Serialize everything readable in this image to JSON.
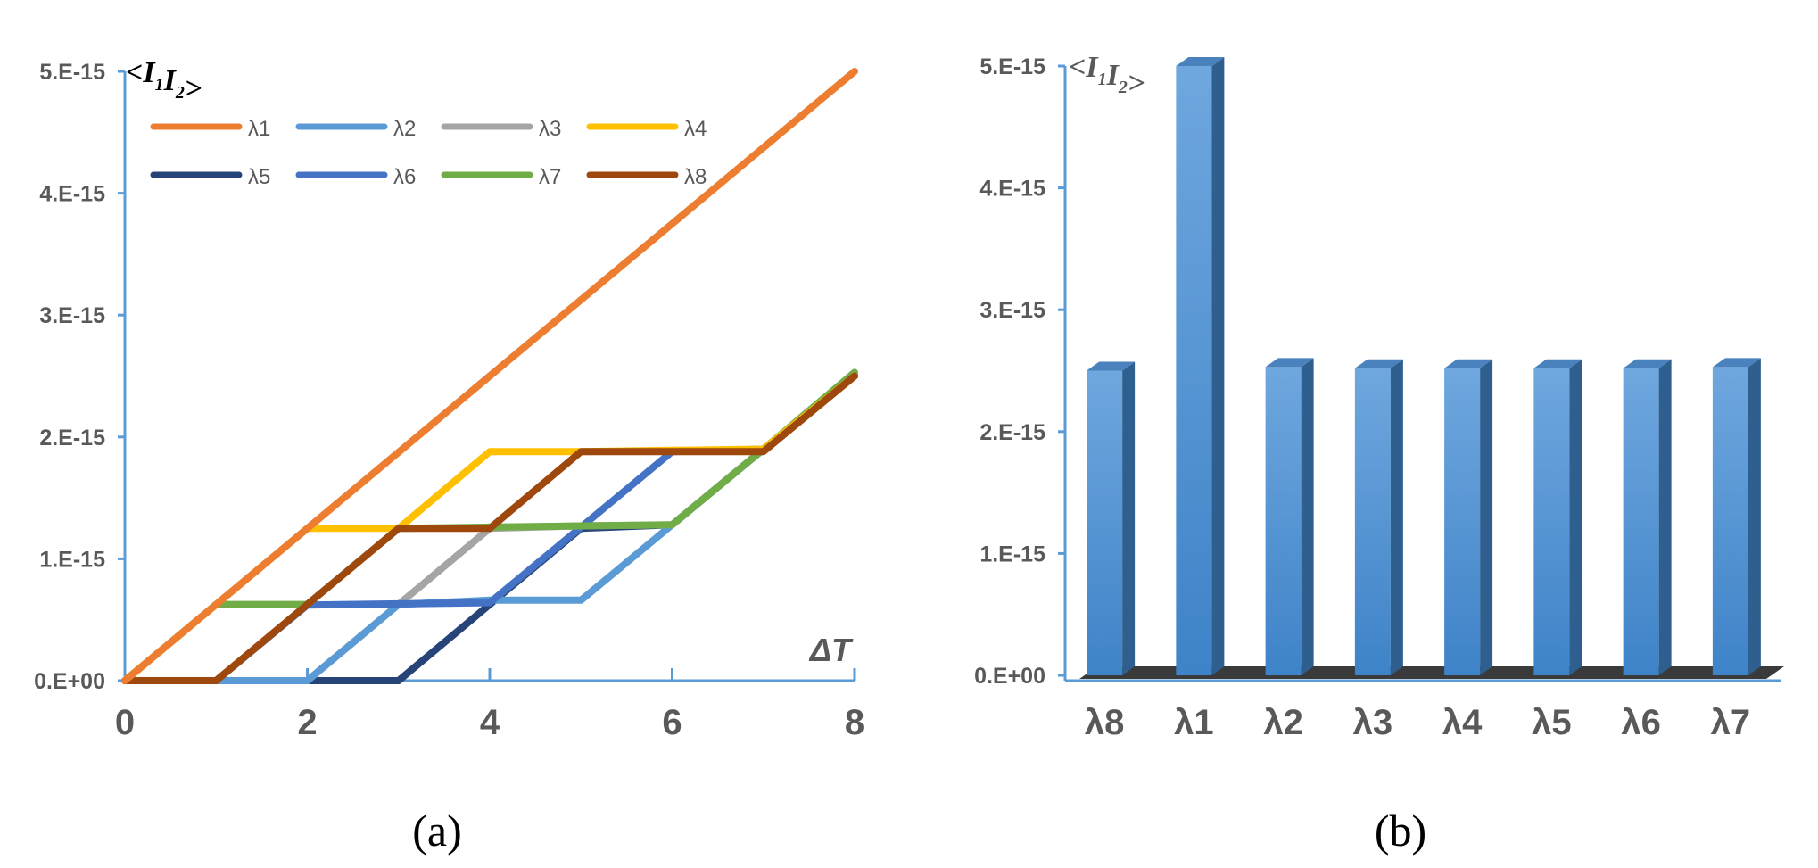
{
  "chart_data": [
    {
      "type": "line",
      "caption": "(a)",
      "ylabel": "<I1I2>",
      "xlabel": "ΔT",
      "xlim": [
        0,
        8
      ],
      "ylim": [
        0,
        5e-15
      ],
      "x_ticks": [
        "0",
        "2",
        "4",
        "6",
        "8"
      ],
      "y_ticks": [
        "0.E+00",
        "1.E-15",
        "2.E-15",
        "3.E-15",
        "4.E-15",
        "5.E-15"
      ],
      "legend_position": "top-left",
      "x": [
        0,
        1,
        2,
        3,
        4,
        5,
        6,
        7,
        8
      ],
      "series": [
        {
          "name": "λ1",
          "color": "#ED7D31",
          "values": [
            0,
            6.25e-16,
            1.25e-15,
            1.875e-15,
            2.5e-15,
            3.125e-15,
            3.75e-15,
            4.375e-15,
            5e-15
          ]
        },
        {
          "name": "λ2",
          "color": "#5B9BD5",
          "values": [
            0,
            0,
            0,
            6.25e-16,
            6.6e-16,
            6.6e-16,
            1.28e-15,
            1.9e-15,
            2.5e-15
          ]
        },
        {
          "name": "λ3",
          "color": "#A5A5A5",
          "values": [
            0,
            0,
            0,
            6.25e-16,
            1.25e-15,
            1.27e-15,
            1.28e-15,
            1.9e-15,
            2.5e-15
          ]
        },
        {
          "name": "λ4",
          "color": "#FFC000",
          "values": [
            0,
            6.25e-16,
            1.25e-15,
            1.25e-15,
            1.88e-15,
            1.88e-15,
            1.89e-15,
            1.9e-15,
            2.5e-15
          ]
        },
        {
          "name": "λ5",
          "color": "#264478",
          "values": [
            0,
            0,
            0,
            0,
            6.25e-16,
            1.25e-15,
            1.28e-15,
            1.9e-15,
            2.5e-15
          ]
        },
        {
          "name": "λ6",
          "color": "#4472C4",
          "values": [
            0,
            0,
            6.2e-16,
            6.3e-16,
            6.4e-16,
            1.26e-15,
            1.88e-15,
            1.9e-15,
            2.5e-15
          ]
        },
        {
          "name": "λ7",
          "color": "#70AD47",
          "values": [
            0,
            6.25e-16,
            6.25e-16,
            1.25e-15,
            1.26e-15,
            1.27e-15,
            1.28e-15,
            1.9e-15,
            2.53e-15
          ]
        },
        {
          "name": "λ8",
          "color": "#9E480E",
          "values": [
            0,
            0,
            6.25e-16,
            1.25e-15,
            1.25e-15,
            1.88e-15,
            1.88e-15,
            1.88e-15,
            2.5e-15
          ]
        }
      ]
    },
    {
      "type": "bar",
      "caption": "(b)",
      "ylabel": "<I1I2>",
      "ylim": [
        0,
        5e-15
      ],
      "y_ticks": [
        "0.E+00",
        "1.E-15",
        "2.E-15",
        "3.E-15",
        "4.E-15",
        "5.E-15"
      ],
      "categories": [
        "λ8",
        "λ1",
        "λ2",
        "λ3",
        "λ4",
        "λ5",
        "λ6",
        "λ7"
      ],
      "values": [
        2.5e-15,
        5e-15,
        2.53e-15,
        2.52e-15,
        2.52e-15,
        2.52e-15,
        2.52e-15,
        2.53e-15
      ],
      "color": "#5B9BD5"
    }
  ]
}
